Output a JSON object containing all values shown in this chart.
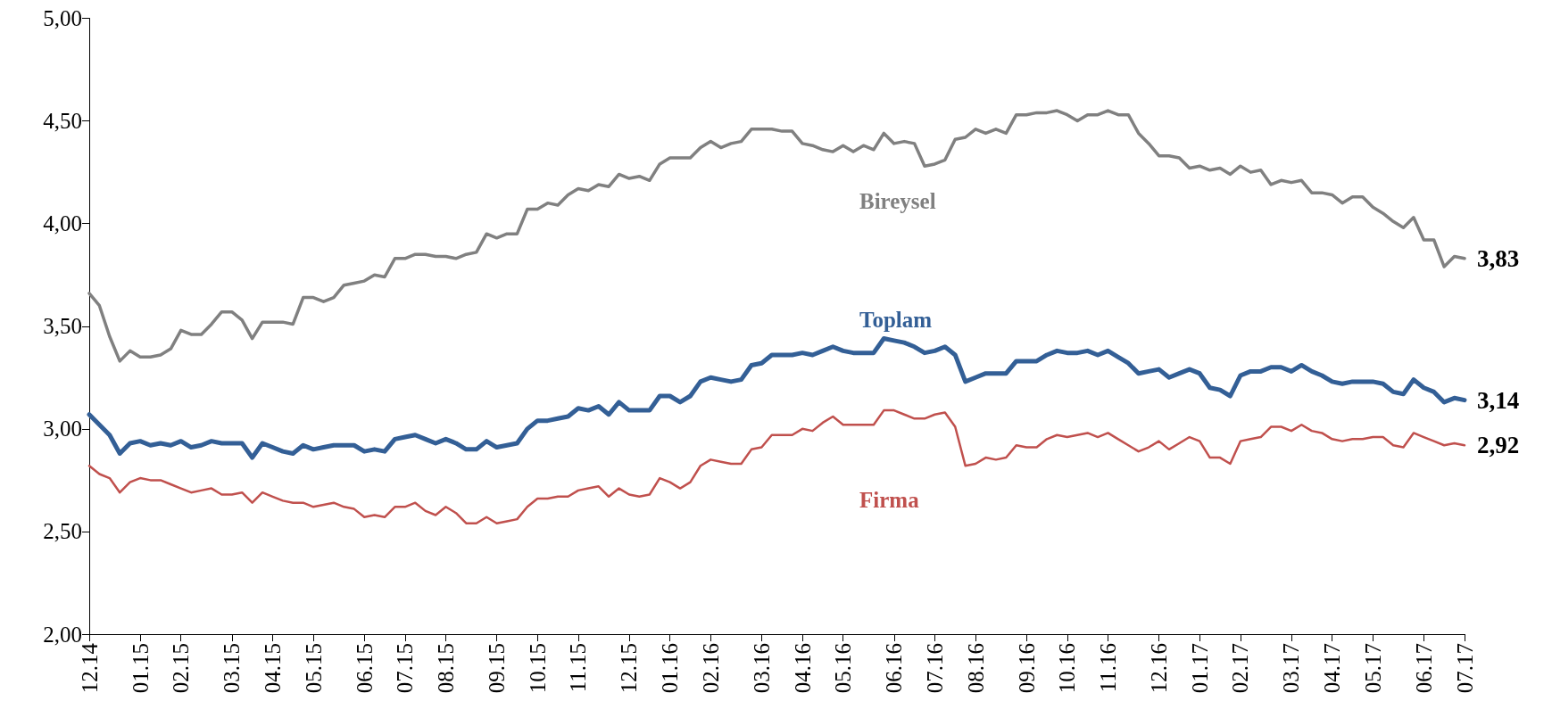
{
  "chart_data": {
    "type": "line",
    "categories": [
      "12.14",
      null,
      null,
      null,
      null,
      "01.15",
      null,
      null,
      null,
      "02.15",
      null,
      null,
      null,
      null,
      "03.15",
      null,
      null,
      null,
      "04.15",
      null,
      null,
      null,
      "05.15",
      null,
      null,
      null,
      null,
      "06.15",
      null,
      null,
      null,
      "07.15",
      null,
      null,
      null,
      "08.15",
      null,
      null,
      null,
      null,
      "09.15",
      null,
      null,
      null,
      "10.15",
      null,
      null,
      null,
      "11.15",
      null,
      null,
      null,
      null,
      "12.15",
      null,
      null,
      null,
      "01.16",
      null,
      null,
      null,
      "02.16",
      null,
      null,
      null,
      null,
      "03.16",
      null,
      null,
      null,
      "04.16",
      null,
      null,
      null,
      "05.16",
      null,
      null,
      null,
      null,
      "06.16",
      null,
      null,
      null,
      "07.16",
      null,
      null,
      null,
      "08.16",
      null,
      null,
      null,
      null,
      "09.16",
      null,
      null,
      null,
      "10.16",
      null,
      null,
      null,
      "11.16",
      null,
      null,
      null,
      null,
      "12.16",
      null,
      null,
      null,
      "01.17",
      null,
      null,
      null,
      "02.17",
      null,
      null,
      null,
      null,
      "03.17",
      null,
      null,
      null,
      "04.17",
      null,
      null,
      null,
      "05.17",
      null,
      null,
      null,
      null,
      "06.17",
      null,
      null,
      null,
      "07.17"
    ],
    "ylim": [
      2,
      5
    ],
    "yticks": [
      {
        "value": 2,
        "label": "2,00"
      },
      {
        "value": 2.5,
        "label": "2,50"
      },
      {
        "value": 3,
        "label": "3,00"
      },
      {
        "value": 3.5,
        "label": "3,50"
      },
      {
        "value": 4,
        "label": "4,00"
      },
      {
        "value": 4.5,
        "label": "4,50"
      },
      {
        "value": 5,
        "label": "5,00"
      }
    ],
    "series": [
      {
        "name": "Bireysel",
        "color": "#808080",
        "values": [
          3.66,
          3.6,
          3.45,
          3.33,
          3.38,
          3.35,
          3.35,
          3.36,
          3.39,
          3.48,
          3.46,
          3.46,
          3.51,
          3.57,
          3.57,
          3.53,
          3.44,
          3.52,
          3.52,
          3.52,
          3.51,
          3.64,
          3.64,
          3.62,
          3.64,
          3.7,
          3.71,
          3.72,
          3.75,
          3.74,
          3.83,
          3.83,
          3.85,
          3.85,
          3.84,
          3.84,
          3.83,
          3.85,
          3.86,
          3.95,
          3.93,
          3.95,
          3.95,
          4.07,
          4.07,
          4.1,
          4.09,
          4.14,
          4.17,
          4.16,
          4.19,
          4.18,
          4.24,
          4.22,
          4.23,
          4.21,
          4.29,
          4.32,
          4.32,
          4.32,
          4.37,
          4.4,
          4.37,
          4.39,
          4.4,
          4.46,
          4.46,
          4.46,
          4.45,
          4.45,
          4.39,
          4.38,
          4.36,
          4.35,
          4.38,
          4.35,
          4.38,
          4.36,
          4.44,
          4.39,
          4.4,
          4.39,
          4.28,
          4.29,
          4.31,
          4.41,
          4.42,
          4.46,
          4.44,
          4.46,
          4.44,
          4.53,
          4.53,
          4.54,
          4.54,
          4.55,
          4.53,
          4.5,
          4.53,
          4.53,
          4.55,
          4.53,
          4.53,
          4.44,
          4.39,
          4.33,
          4.33,
          4.32,
          4.27,
          4.28,
          4.26,
          4.27,
          4.24,
          4.28,
          4.25,
          4.26,
          4.19,
          4.21,
          4.2,
          4.21,
          4.15,
          4.15,
          4.14,
          4.1,
          4.13,
          4.13,
          4.08,
          4.05,
          4.01,
          3.98,
          4.03,
          3.92,
          3.92,
          3.79,
          3.84,
          3.83
        ],
        "value_labels": [
          null,
          null,
          null,
          null,
          null,
          null,
          null,
          null,
          null,
          null,
          null,
          null,
          null,
          null,
          null,
          null,
          null,
          null,
          null,
          null,
          null,
          null,
          null,
          null,
          null,
          null,
          null,
          null,
          null,
          null,
          null,
          null,
          null,
          null,
          null,
          null,
          null,
          null,
          null,
          null,
          null,
          null,
          null,
          null,
          null,
          null,
          null,
          null,
          null,
          null,
          null,
          null,
          null,
          null,
          null,
          null,
          null,
          null,
          null,
          null,
          null,
          null,
          null,
          null,
          null,
          null,
          null,
          null,
          null,
          null,
          null,
          null,
          null,
          null,
          null,
          null,
          null,
          null,
          null,
          null,
          null,
          null,
          null,
          null,
          null,
          null,
          null,
          null,
          null,
          null,
          null,
          null,
          null,
          null,
          null,
          null,
          null,
          null,
          null,
          null,
          null,
          null,
          null,
          null,
          null,
          null,
          null,
          null,
          null,
          null,
          null,
          null,
          null,
          null,
          null,
          null,
          null,
          null,
          null,
          null,
          null,
          null,
          null,
          null,
          null,
          null,
          null,
          null,
          null,
          null,
          null,
          null,
          null,
          null,
          null,
          "3,83"
        ]
      },
      {
        "name": "Toplam",
        "color": "#335f96",
        "values": [
          3.07,
          3.02,
          2.97,
          2.88,
          2.93,
          2.94,
          2.92,
          2.93,
          2.92,
          2.94,
          2.91,
          2.92,
          2.94,
          2.93,
          2.93,
          2.93,
          2.86,
          2.93,
          2.91,
          2.89,
          2.88,
          2.92,
          2.9,
          2.91,
          2.92,
          2.92,
          2.92,
          2.89,
          2.9,
          2.89,
          2.95,
          2.96,
          2.97,
          2.95,
          2.93,
          2.95,
          2.93,
          2.9,
          2.9,
          2.94,
          2.91,
          2.92,
          2.93,
          3.0,
          3.04,
          3.04,
          3.05,
          3.06,
          3.1,
          3.09,
          3.11,
          3.07,
          3.13,
          3.09,
          3.09,
          3.09,
          3.16,
          3.16,
          3.13,
          3.16,
          3.23,
          3.25,
          3.24,
          3.23,
          3.24,
          3.31,
          3.32,
          3.36,
          3.36,
          3.36,
          3.37,
          3.36,
          3.38,
          3.4,
          3.38,
          3.37,
          3.37,
          3.37,
          3.44,
          3.43,
          3.42,
          3.4,
          3.37,
          3.38,
          3.4,
          3.36,
          3.23,
          3.25,
          3.27,
          3.27,
          3.27,
          3.33,
          3.33,
          3.33,
          3.36,
          3.38,
          3.37,
          3.37,
          3.38,
          3.36,
          3.38,
          3.35,
          3.32,
          3.27,
          3.28,
          3.29,
          3.25,
          3.27,
          3.29,
          3.27,
          3.2,
          3.19,
          3.16,
          3.26,
          3.28,
          3.28,
          3.3,
          3.3,
          3.28,
          3.31,
          3.28,
          3.26,
          3.23,
          3.22,
          3.23,
          3.23,
          3.23,
          3.22,
          3.18,
          3.17,
          3.24,
          3.2,
          3.18,
          3.13,
          3.15,
          3.14
        ],
        "value_labels": [
          null,
          null,
          null,
          null,
          null,
          null,
          null,
          null,
          null,
          null,
          null,
          null,
          null,
          null,
          null,
          null,
          null,
          null,
          null,
          null,
          null,
          null,
          null,
          null,
          null,
          null,
          null,
          null,
          null,
          null,
          null,
          null,
          null,
          null,
          null,
          null,
          null,
          null,
          null,
          null,
          null,
          null,
          null,
          null,
          null,
          null,
          null,
          null,
          null,
          null,
          null,
          null,
          null,
          null,
          null,
          null,
          null,
          null,
          null,
          null,
          null,
          null,
          null,
          null,
          null,
          null,
          null,
          null,
          null,
          null,
          null,
          null,
          null,
          null,
          null,
          null,
          null,
          null,
          null,
          null,
          null,
          null,
          null,
          null,
          null,
          null,
          null,
          null,
          null,
          null,
          null,
          null,
          null,
          null,
          null,
          null,
          null,
          null,
          null,
          null,
          null,
          null,
          null,
          null,
          null,
          null,
          null,
          null,
          null,
          null,
          null,
          null,
          null,
          null,
          null,
          null,
          null,
          null,
          null,
          null,
          null,
          null,
          null,
          null,
          null,
          null,
          null,
          null,
          null,
          null,
          null,
          null,
          null,
          null,
          null,
          "3,14"
        ]
      },
      {
        "name": "Firma",
        "color": "#c0504d",
        "values": [
          2.82,
          2.78,
          2.76,
          2.69,
          2.74,
          2.76,
          2.75,
          2.75,
          2.73,
          2.71,
          2.69,
          2.7,
          2.71,
          2.68,
          2.68,
          2.69,
          2.64,
          2.69,
          2.67,
          2.65,
          2.64,
          2.64,
          2.62,
          2.63,
          2.64,
          2.62,
          2.61,
          2.57,
          2.58,
          2.57,
          2.62,
          2.62,
          2.64,
          2.6,
          2.58,
          2.62,
          2.59,
          2.54,
          2.54,
          2.57,
          2.54,
          2.55,
          2.56,
          2.62,
          2.66,
          2.66,
          2.67,
          2.67,
          2.7,
          2.71,
          2.72,
          2.67,
          2.71,
          2.68,
          2.67,
          2.68,
          2.76,
          2.74,
          2.71,
          2.74,
          2.82,
          2.85,
          2.84,
          2.83,
          2.83,
          2.9,
          2.91,
          2.97,
          2.97,
          2.97,
          3.0,
          2.99,
          3.03,
          3.06,
          3.02,
          3.02,
          3.02,
          3.02,
          3.09,
          3.09,
          3.07,
          3.05,
          3.05,
          3.07,
          3.08,
          3.01,
          2.82,
          2.83,
          2.86,
          2.85,
          2.86,
          2.92,
          2.91,
          2.91,
          2.95,
          2.97,
          2.96,
          2.97,
          2.98,
          2.96,
          2.98,
          2.95,
          2.92,
          2.89,
          2.91,
          2.94,
          2.9,
          2.93,
          2.96,
          2.94,
          2.86,
          2.86,
          2.83,
          2.94,
          2.95,
          2.96,
          3.01,
          3.01,
          2.99,
          3.02,
          2.99,
          2.98,
          2.95,
          2.94,
          2.95,
          2.95,
          2.96,
          2.96,
          2.92,
          2.91,
          2.98,
          2.96,
          2.94,
          2.92,
          2.93,
          2.92
        ],
        "value_labels": [
          null,
          null,
          null,
          null,
          null,
          null,
          null,
          null,
          null,
          null,
          null,
          null,
          null,
          null,
          null,
          null,
          null,
          null,
          null,
          null,
          null,
          null,
          null,
          null,
          null,
          null,
          null,
          null,
          null,
          null,
          null,
          null,
          null,
          null,
          null,
          null,
          null,
          null,
          null,
          null,
          null,
          null,
          null,
          null,
          null,
          null,
          null,
          null,
          null,
          null,
          null,
          null,
          null,
          null,
          null,
          null,
          null,
          null,
          null,
          null,
          null,
          null,
          null,
          null,
          null,
          null,
          null,
          null,
          null,
          null,
          null,
          null,
          null,
          null,
          null,
          null,
          null,
          null,
          null,
          null,
          null,
          null,
          null,
          null,
          null,
          null,
          null,
          null,
          null,
          null,
          null,
          null,
          null,
          null,
          null,
          null,
          null,
          null,
          null,
          null,
          null,
          null,
          null,
          null,
          null,
          null,
          null,
          null,
          null,
          null,
          null,
          null,
          null,
          null,
          null,
          null,
          null,
          null,
          null,
          null,
          null,
          null,
          null,
          null,
          null,
          null,
          null,
          null,
          null,
          null,
          null,
          null,
          null,
          null,
          null,
          "2,92"
        ]
      }
    ]
  }
}
